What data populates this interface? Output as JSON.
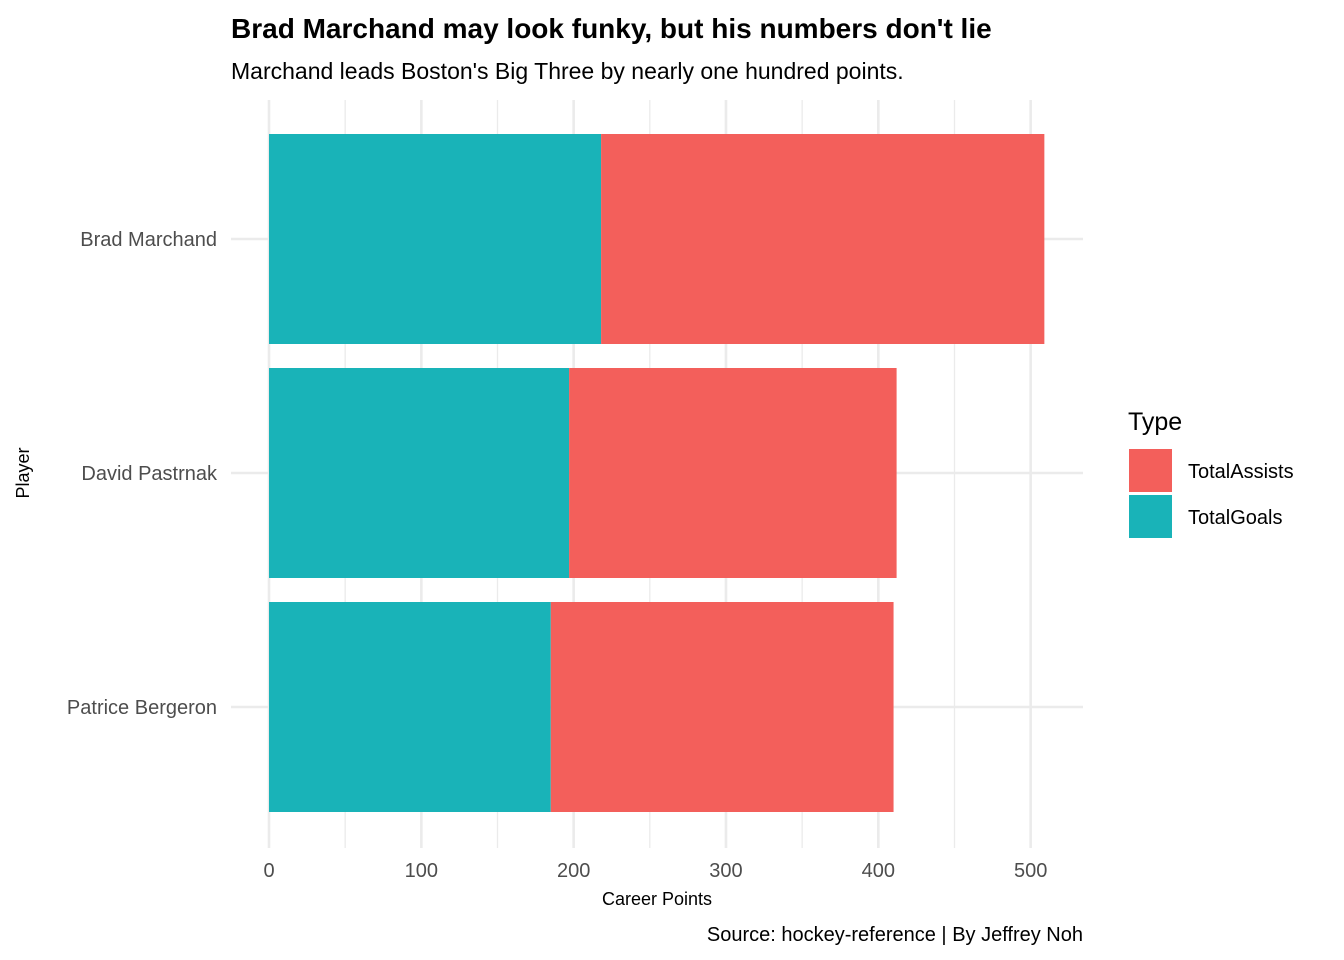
{
  "chart_data": {
    "type": "bar",
    "orientation": "horizontal",
    "stacked": true,
    "title": "Brad Marchand may look funky, but his numbers don't lie",
    "subtitle": "Marchand leads Boston's Big Three by nearly one hundred points.",
    "caption": "Source: hockey-reference | By Jeffrey Noh",
    "xlabel": "Career Points",
    "ylabel": "Player",
    "categories": [
      "Brad Marchand",
      "David Pastrnak",
      "Patrice Bergeron"
    ],
    "series": [
      {
        "name": "TotalGoals",
        "color": "#19b3b8",
        "values": [
          218,
          197,
          185
        ]
      },
      {
        "name": "TotalAssists",
        "color": "#f35f5b",
        "values": [
          291,
          215,
          225
        ]
      }
    ],
    "xlim": [
      0,
      535
    ],
    "x_ticks": [
      "0",
      "100",
      "200",
      "300",
      "400",
      "500"
    ],
    "x_tick_values": [
      0,
      100,
      200,
      300,
      400,
      500
    ],
    "grid": true,
    "legend": {
      "title": "Type",
      "position": "right",
      "entries": [
        {
          "label": "TotalAssists",
          "color": "#f35f5b"
        },
        {
          "label": "TotalGoals",
          "color": "#19b3b8"
        }
      ]
    }
  }
}
